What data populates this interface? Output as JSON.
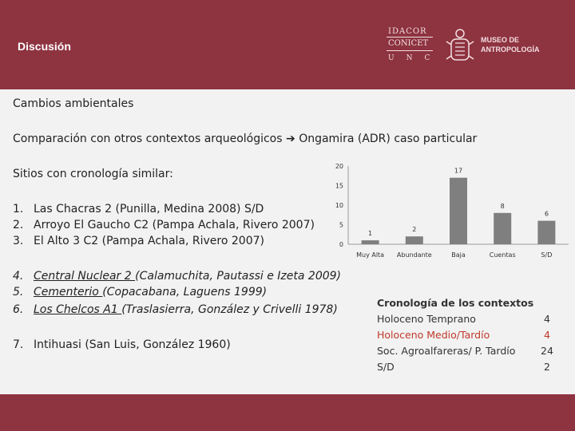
{
  "header": {
    "title": "Discusión",
    "logo_idacor": {
      "line1": "IDACOR",
      "line2": "CONICET",
      "line3": "UNC"
    },
    "logo_museo": {
      "line1": "MUSEO DE",
      "line2": "ANTROPOLOGÍA"
    }
  },
  "content": {
    "heading1": "Cambios ambientales",
    "heading2_a": "Comparación con otros contextos arqueológicos",
    "heading2_arrow": "➔",
    "heading2_b": "Ongamira (ADR) caso particular",
    "sitios_label": "Sitios con cronología similar:",
    "list1": [
      {
        "n": "1.",
        "text": "Las Chacras 2 (Punilla, Medina 2008) S/D"
      },
      {
        "n": "2.",
        "text": "Arroyo El Gaucho C2 (Pampa Achala, Rivero 2007)"
      },
      {
        "n": "3.",
        "text": "El Alto 3 C2 (Pampa Achala, Rivero 2007)"
      }
    ],
    "list2": [
      {
        "n": "4.",
        "u": "Central Nuclear 2 ",
        "rest": "(Calamuchita, Pautassi e Izeta 2009)"
      },
      {
        "n": "5.",
        "u": "Cementerio ",
        "rest": "(Copacabana, Laguens 1999)"
      },
      {
        "n": "6.",
        "u": "Los Chelcos A1 ",
        "rest": "(Traslasierra, González y Crivelli 1978)"
      }
    ],
    "list3": [
      {
        "n": "7.",
        "text": "Intihuasi (San Luis, González 1960)"
      }
    ]
  },
  "chart_data": {
    "type": "bar",
    "categories": [
      "Muy Alta",
      "Abundante",
      "Baja",
      "Cuentas",
      "S/D"
    ],
    "values": [
      1,
      2,
      17,
      8,
      6
    ],
    "ylim": [
      0,
      20
    ],
    "yticks": [
      0,
      5,
      10,
      15,
      20
    ],
    "bar_color": "#7f7f7f",
    "grid": false
  },
  "cronologia": {
    "title": "Cronología de los contextos",
    "rows": [
      {
        "label": "Holoceno Temprano",
        "value": "4"
      },
      {
        "label": "Holoceno Medio/Tardío",
        "value": "4"
      },
      {
        "label": "Soc. Agroalfareras/ P. Tardío",
        "value": "24"
      },
      {
        "label": "S/D",
        "value": "2"
      }
    ]
  },
  "colors": {
    "header_bg": "#8e3340",
    "content_bg": "#f2f2f2",
    "accent_red": "#c0392b"
  }
}
